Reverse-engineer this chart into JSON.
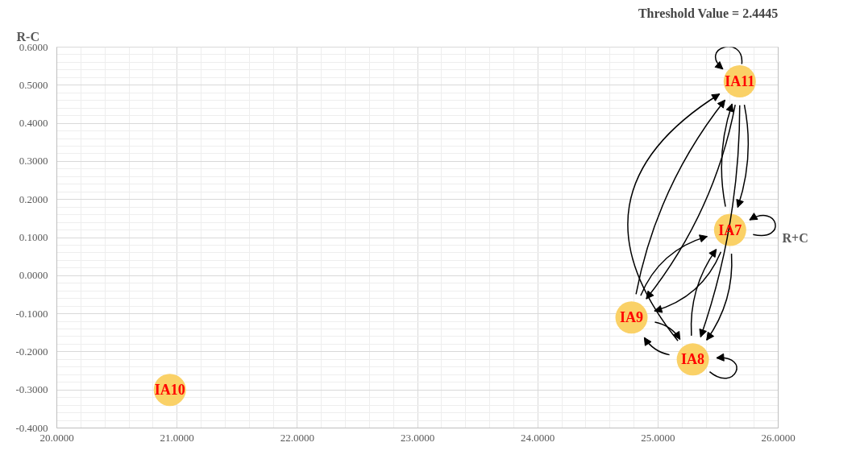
{
  "chart_data": {
    "type": "scatter",
    "title": "Threshold Value = 2.4445",
    "xlabel": "R+C",
    "ylabel": "R-C",
    "x": [
      25.68,
      25.6,
      24.78,
      25.29,
      20.94
    ],
    "values": [
      0.51,
      0.12,
      -0.11,
      -0.22,
      -0.3
    ],
    "color": "#fad167",
    "marker": "circle",
    "grid": true,
    "annotations": [
      {
        "text": "IA11",
        "x": 25.68,
        "y": 0.51
      },
      {
        "text": "IA7",
        "x": 25.6,
        "y": 0.12
      },
      {
        "text": "IA9",
        "x": 24.78,
        "y": -0.11
      },
      {
        "text": "IA8",
        "x": 25.29,
        "y": -0.22
      },
      {
        "text": "IA10",
        "x": 20.94,
        "y": -0.3
      }
    ],
    "xlim": [
      20,
      26
    ],
    "ylim": [
      -0.4,
      0.6
    ],
    "xticks": [
      {
        "value": 20,
        "label": "20.0000"
      },
      {
        "value": 21,
        "label": "21.0000"
      },
      {
        "value": 22,
        "label": "22.0000"
      },
      {
        "value": 23,
        "label": "23.0000"
      },
      {
        "value": 24,
        "label": "24.0000"
      },
      {
        "value": 25,
        "label": "25.0000"
      },
      {
        "value": 26,
        "label": "26.0000"
      }
    ],
    "yticks": [
      {
        "value": -0.4,
        "label": "-0.4000"
      },
      {
        "value": -0.3,
        "label": "-0.3000"
      },
      {
        "value": -0.2,
        "label": "-0.2000"
      },
      {
        "value": -0.1,
        "label": "-0.1000"
      },
      {
        "value": 0,
        "label": "0.0000"
      },
      {
        "value": 0.1,
        "label": "0.1000"
      },
      {
        "value": 0.2,
        "label": "0.2000"
      },
      {
        "value": 0.3,
        "label": "0.3000"
      },
      {
        "value": 0.4,
        "label": "0.4000"
      },
      {
        "value": 0.5,
        "label": "0.5000"
      },
      {
        "value": 0.6,
        "label": "0.6000"
      }
    ]
  }
}
